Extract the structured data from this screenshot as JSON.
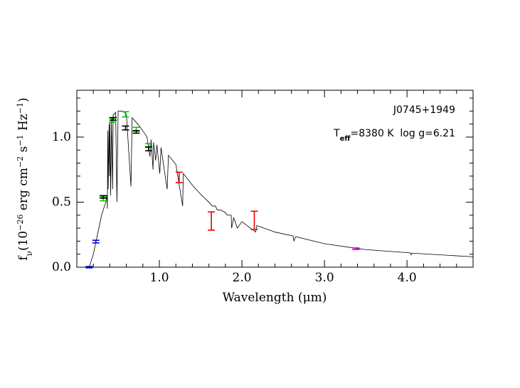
{
  "chart_data": {
    "type": "sed",
    "xlabel": "Wavelength (μm)",
    "ylabel": [
      {
        "t": "f"
      },
      {
        "sub": "ν"
      },
      {
        "t": "(10"
      },
      {
        "sup": "−26"
      },
      {
        "t": " erg cm"
      },
      {
        "sup": "−2"
      },
      {
        "t": " s"
      },
      {
        "sup": "−1"
      },
      {
        "t": " Hz"
      },
      {
        "sup": "−1"
      },
      {
        "t": ")"
      }
    ],
    "annotations": [
      {
        "t": "J0745+1949"
      },
      {
        "t": "T",
        "sub": "eff",
        "rest": "=8380 K  log g=6.21"
      }
    ],
    "xlim": [
      0,
      4.8
    ],
    "ylim": [
      0,
      1.36
    ],
    "xticks": [
      {
        "value": 1,
        "label": "1.0"
      },
      {
        "value": 2,
        "label": "2.0"
      },
      {
        "value": 3,
        "label": "3.0"
      },
      {
        "value": 4,
        "label": "4.0"
      }
    ],
    "yticks": [
      {
        "value": 0,
        "label": "0.0"
      },
      {
        "value": 0.5,
        "label": "0.5"
      },
      {
        "value": 1,
        "label": "1.0"
      }
    ],
    "x_minor_ticks": [
      0.2,
      0.4,
      0.6,
      0.8,
      1.2,
      1.4,
      1.6,
      1.8,
      2.2,
      2.4,
      2.6,
      2.8,
      3.2,
      3.4,
      3.6,
      3.8,
      4.2,
      4.4,
      4.6
    ],
    "y_minor_ticks": [
      0.1,
      0.2,
      0.3,
      0.4,
      0.6,
      0.7,
      0.8,
      0.9,
      1.1,
      1.2,
      1.3
    ],
    "model": {
      "color": "#000000",
      "x": [
        0.15,
        0.2,
        0.25,
        0.3,
        0.35,
        0.365,
        0.37,
        0.375,
        0.38,
        0.39,
        0.397,
        0.4,
        0.41,
        0.42,
        0.434,
        0.44,
        0.47,
        0.486,
        0.5,
        0.55,
        0.6,
        0.656,
        0.67,
        0.75,
        0.82,
        0.85,
        0.886,
        0.9,
        0.923,
        0.93,
        0.955,
        0.97,
        1.005,
        1.02,
        1.094,
        1.11,
        1.2,
        1.282,
        1.29,
        1.4,
        1.5,
        1.6,
        1.64,
        1.68,
        1.7,
        1.74,
        1.8,
        1.82,
        1.87,
        1.875,
        1.9,
        1.945,
        2.0,
        2.166,
        2.18,
        2.4,
        2.62,
        2.63,
        2.65,
        3.0,
        3.5,
        4.04,
        4.05,
        4.06,
        4.8
      ],
      "values": [
        0.0,
        0.1,
        0.25,
        0.4,
        0.5,
        0.55,
        0.45,
        1.05,
        0.6,
        1.1,
        0.7,
        1.12,
        0.55,
        1.15,
        0.6,
        1.17,
        1.19,
        0.5,
        1.2,
        1.2,
        1.18,
        0.62,
        1.15,
        1.09,
        1.03,
        1.0,
        0.85,
        0.98,
        0.75,
        0.96,
        0.82,
        0.94,
        0.72,
        0.92,
        0.6,
        0.86,
        0.79,
        0.47,
        0.72,
        0.63,
        0.56,
        0.5,
        0.47,
        0.47,
        0.44,
        0.44,
        0.42,
        0.4,
        0.4,
        0.3,
        0.38,
        0.3,
        0.35,
        0.27,
        0.32,
        0.27,
        0.24,
        0.2,
        0.235,
        0.18,
        0.135,
        0.11,
        0.095,
        0.108,
        0.08
      ]
    },
    "series": [
      {
        "color": "#0000cc",
        "x": [
          0.15,
          0.23
        ],
        "values": [
          0.0,
          0.197
        ],
        "errors": [
          0.005,
          0.01
        ]
      },
      {
        "color": "#00cc00",
        "x": [
          0.32,
          0.43,
          0.59,
          0.72,
          0.87
        ],
        "values": [
          0.525,
          1.13,
          1.175,
          1.06,
          0.935
        ],
        "errors": [
          0.015,
          0.015,
          0.02,
          0.015,
          0.015
        ]
      },
      {
        "color": "#000000",
        "x": [
          0.32,
          0.44,
          0.59,
          0.72,
          0.87
        ],
        "values": [
          0.54,
          1.14,
          1.07,
          1.04,
          0.91
        ],
        "errors": [
          0.01,
          0.01,
          0.015,
          0.01,
          0.015
        ]
      },
      {
        "color": "#ee0000",
        "x": [
          1.24,
          1.63,
          2.15
        ],
        "values": [
          0.69,
          0.355,
          0.36
        ],
        "errors": [
          0.04,
          0.07,
          0.07
        ]
      },
      {
        "color": "#cc00cc",
        "x": [
          3.38
        ],
        "values": [
          0.142
        ],
        "errors": [
          0.006
        ]
      }
    ]
  }
}
